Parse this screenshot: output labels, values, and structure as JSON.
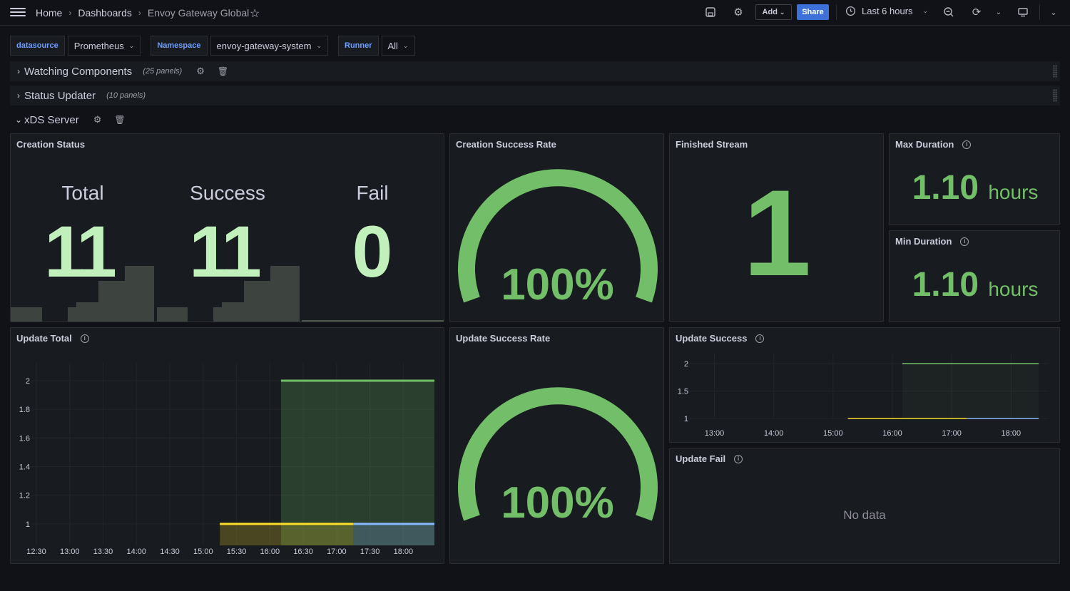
{
  "nav": {
    "breadcrumb": [
      "Home",
      "Dashboards",
      "Envoy Gateway Global"
    ],
    "add_label": "Add",
    "share_label": "Share",
    "time_range": "Last 6 hours"
  },
  "variables": [
    {
      "label": "datasource",
      "value": "Prometheus"
    },
    {
      "label": "Namespace",
      "value": "envoy-gateway-system"
    },
    {
      "label": "Runner",
      "value": "All"
    }
  ],
  "rows": [
    {
      "title": "Watching Components",
      "count": "(25 panels)",
      "collapsed": true
    },
    {
      "title": "Status Updater",
      "count": "(10 panels)",
      "collapsed": true
    },
    {
      "title": "xDS Server",
      "collapsed": false
    }
  ],
  "panels": {
    "creation_status": {
      "title": "Creation Status",
      "stats": [
        {
          "label": "Total",
          "value": "11"
        },
        {
          "label": "Success",
          "value": "11"
        },
        {
          "label": "Fail",
          "value": "0"
        }
      ]
    },
    "creation_success_rate": {
      "title": "Creation Success Rate",
      "value": "100%"
    },
    "finished_stream": {
      "title": "Finished Stream",
      "value": "1"
    },
    "max_duration": {
      "title": "Max Duration",
      "value": "1.10",
      "unit": "hours"
    },
    "min_duration": {
      "title": "Min Duration",
      "value": "1.10",
      "unit": "hours"
    },
    "update_total": {
      "title": "Update Total"
    },
    "update_success_rate": {
      "title": "Update Success Rate",
      "value": "100%"
    },
    "update_success": {
      "title": "Update Success"
    },
    "update_fail": {
      "title": "Update Fail",
      "message": "No data"
    }
  },
  "colors": {
    "green": "#73bf69",
    "yellow": "#fade2a",
    "blue": "#8ab8ff",
    "red": "#f2495c",
    "orange": "#ff9830"
  },
  "chart_data": [
    {
      "type": "area",
      "title": "Update Total",
      "x_ticks": [
        "12:30",
        "13:00",
        "13:30",
        "14:00",
        "14:30",
        "15:00",
        "15:30",
        "16:00",
        "16:30",
        "17:00",
        "17:30",
        "18:00"
      ],
      "y_ticks": [
        "1",
        "1.2",
        "1.4",
        "1.6",
        "1.8",
        "2"
      ],
      "ylim": [
        0.85,
        2.05
      ],
      "grid": true,
      "series": [
        {
          "color": "#73bf69",
          "x": [
            "16:10",
            "18:28"
          ],
          "y": [
            2,
            2
          ]
        },
        {
          "color": "#fade2a",
          "x": [
            "15:15",
            "17:15"
          ],
          "y": [
            1,
            1
          ]
        },
        {
          "color": "#8ab8ff",
          "x": [
            "17:15",
            "18:28"
          ],
          "y": [
            1,
            1
          ]
        }
      ]
    },
    {
      "type": "line",
      "title": "Update Success",
      "x_ticks": [
        "13:00",
        "14:00",
        "15:00",
        "16:00",
        "17:00",
        "18:00"
      ],
      "y_ticks": [
        "1",
        "1.5",
        "2"
      ],
      "ylim": [
        1,
        2
      ],
      "grid": true,
      "series": [
        {
          "color": "#73bf69",
          "x": [
            "16:10",
            "18:28"
          ],
          "y": [
            2,
            2
          ]
        },
        {
          "color": "#fade2a",
          "x": [
            "15:15",
            "17:15"
          ],
          "y": [
            1,
            1
          ]
        },
        {
          "color": "#8ab8ff",
          "x": [
            "17:15",
            "18:28"
          ],
          "y": [
            1,
            1
          ]
        }
      ]
    }
  ]
}
